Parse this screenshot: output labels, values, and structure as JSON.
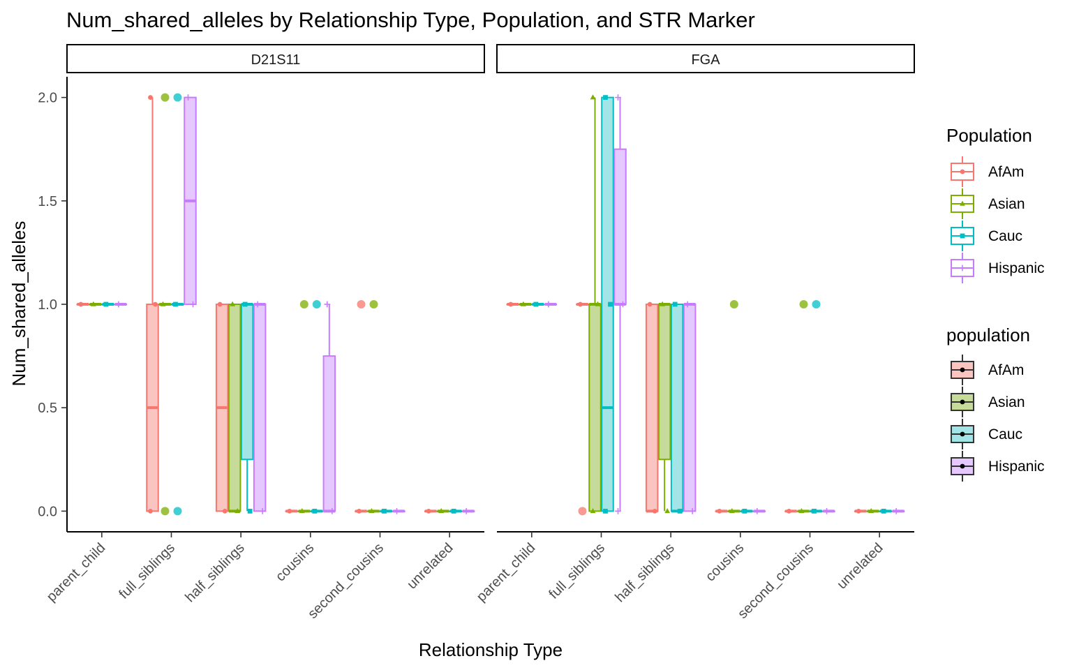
{
  "chart_data": {
    "type": "boxplot",
    "title": "Num_shared_alleles by Relationship Type, Population, and STR Marker",
    "xlabel": "Relationship Type",
    "ylabel": "Num_shared_alleles",
    "ylim": [
      -0.1,
      2.1
    ],
    "yticks": [
      "0.0",
      "0.5",
      "1.0",
      "1.5",
      "2.0"
    ],
    "ytick_values": [
      0,
      0.5,
      1.0,
      1.5,
      2.0
    ],
    "categories": [
      "parent_child",
      "full_siblings",
      "half_siblings",
      "cousins",
      "second_cousins",
      "unrelated"
    ],
    "populations": [
      "AfAm",
      "Asian",
      "Cauc",
      "Hispanic"
    ],
    "colors": {
      "AfAm": "#F8766D",
      "Asian": "#7CAE00",
      "Cauc": "#00BFC4",
      "Hispanic": "#C77CFF"
    },
    "fills": {
      "AfAm": "#FAC4C0",
      "Asian": "#C6DB99",
      "Cauc": "#A3E5E7",
      "Hispanic": "#E5C8FF"
    },
    "legend_population_title": "Population",
    "legend_fill_title": "population",
    "legend_labels": [
      "AfAm",
      "Asian",
      "Cauc",
      "Hispanic"
    ],
    "facets": [
      {
        "name": "D21S11",
        "boxes": [
          [
            {
              "q1": 1,
              "med": 1,
              "q3": 1,
              "lo": 1,
              "hi": 1,
              "pts": [
                1
              ]
            },
            {
              "q1": 1,
              "med": 1,
              "q3": 1,
              "lo": 1,
              "hi": 1,
              "pts": [
                1
              ]
            },
            {
              "q1": 1,
              "med": 1,
              "q3": 1,
              "lo": 1,
              "hi": 1,
              "pts": [
                1
              ]
            },
            {
              "q1": 1,
              "med": 1,
              "q3": 1,
              "lo": 1,
              "hi": 1,
              "pts": [
                1
              ]
            }
          ],
          [
            {
              "q1": 0,
              "med": 0.5,
              "q3": 1,
              "lo": 0,
              "hi": 2,
              "pts": [
                2,
                1,
                0
              ]
            },
            {
              "q1": 1,
              "med": 1,
              "q3": 1,
              "lo": 1,
              "hi": 1,
              "pts": [
                1
              ],
              "out": [
                2,
                0
              ]
            },
            {
              "q1": 1,
              "med": 1,
              "q3": 1,
              "lo": 1,
              "hi": 1,
              "pts": [
                1
              ],
              "out": [
                2,
                0
              ]
            },
            {
              "q1": 1,
              "med": 1.5,
              "q3": 2,
              "lo": 1,
              "hi": 2,
              "pts": [
                2,
                1
              ]
            }
          ],
          [
            {
              "q1": 0,
              "med": 0.5,
              "q3": 1,
              "lo": 0,
              "hi": 1,
              "pts": [
                1,
                0
              ]
            },
            {
              "q1": 0,
              "med": 0,
              "q3": 1,
              "lo": 0,
              "hi": 1,
              "pts": [
                1,
                0
              ]
            },
            {
              "q1": 0.25,
              "med": 1,
              "q3": 1,
              "lo": 0,
              "hi": 1,
              "pts": [
                1,
                0
              ]
            },
            {
              "q1": 0,
              "med": 1,
              "q3": 1,
              "lo": 0,
              "hi": 1,
              "pts": [
                1,
                0
              ]
            }
          ],
          [
            {
              "q1": 0,
              "med": 0,
              "q3": 0,
              "lo": 0,
              "hi": 0,
              "pts": [
                0
              ]
            },
            {
              "q1": 0,
              "med": 0,
              "q3": 0,
              "lo": 0,
              "hi": 0,
              "pts": [
                0
              ],
              "out": [
                1
              ]
            },
            {
              "q1": 0,
              "med": 0,
              "q3": 0,
              "lo": 0,
              "hi": 0,
              "pts": [
                0
              ],
              "out": [
                1
              ]
            },
            {
              "q1": 0,
              "med": 0,
              "q3": 0.75,
              "lo": 0,
              "hi": 1,
              "pts": [
                1,
                0
              ]
            }
          ],
          [
            {
              "q1": 0,
              "med": 0,
              "q3": 0,
              "lo": 0,
              "hi": 0,
              "pts": [
                0
              ],
              "out": [
                1
              ]
            },
            {
              "q1": 0,
              "med": 0,
              "q3": 0,
              "lo": 0,
              "hi": 0,
              "pts": [
                0
              ],
              "out": [
                1
              ]
            },
            {
              "q1": 0,
              "med": 0,
              "q3": 0,
              "lo": 0,
              "hi": 0,
              "pts": [
                0
              ]
            },
            {
              "q1": 0,
              "med": 0,
              "q3": 0,
              "lo": 0,
              "hi": 0,
              "pts": [
                0
              ]
            }
          ],
          [
            {
              "q1": 0,
              "med": 0,
              "q3": 0,
              "lo": 0,
              "hi": 0,
              "pts": [
                0
              ]
            },
            {
              "q1": 0,
              "med": 0,
              "q3": 0,
              "lo": 0,
              "hi": 0,
              "pts": [
                0
              ]
            },
            {
              "q1": 0,
              "med": 0,
              "q3": 0,
              "lo": 0,
              "hi": 0,
              "pts": [
                0
              ]
            },
            {
              "q1": 0,
              "med": 0,
              "q3": 0,
              "lo": 0,
              "hi": 0,
              "pts": [
                0
              ]
            }
          ]
        ]
      },
      {
        "name": "FGA",
        "boxes": [
          [
            {
              "q1": 1,
              "med": 1,
              "q3": 1,
              "lo": 1,
              "hi": 1,
              "pts": [
                1
              ]
            },
            {
              "q1": 1,
              "med": 1,
              "q3": 1,
              "lo": 1,
              "hi": 1,
              "pts": [
                1
              ]
            },
            {
              "q1": 1,
              "med": 1,
              "q3": 1,
              "lo": 1,
              "hi": 1,
              "pts": [
                1
              ]
            },
            {
              "q1": 1,
              "med": 1,
              "q3": 1,
              "lo": 1,
              "hi": 1,
              "pts": [
                1
              ]
            }
          ],
          [
            {
              "q1": 1,
              "med": 1,
              "q3": 1,
              "lo": 1,
              "hi": 1,
              "pts": [
                1
              ],
              "out": [
                0
              ]
            },
            {
              "q1": 0,
              "med": 1,
              "q3": 1,
              "lo": 0,
              "hi": 2,
              "pts": [
                2,
                1,
                0
              ]
            },
            {
              "q1": 0,
              "med": 0.5,
              "q3": 2,
              "lo": 0,
              "hi": 2,
              "pts": [
                2,
                1,
                0
              ]
            },
            {
              "q1": 1,
              "med": 1,
              "q3": 1.75,
              "lo": 0,
              "hi": 2,
              "pts": [
                2,
                1,
                0
              ]
            }
          ],
          [
            {
              "q1": 0,
              "med": 0,
              "q3": 1,
              "lo": 0,
              "hi": 1,
              "pts": [
                1,
                0
              ]
            },
            {
              "q1": 0.25,
              "med": 1,
              "q3": 1,
              "lo": 0,
              "hi": 1,
              "pts": [
                1,
                0
              ]
            },
            {
              "q1": 0,
              "med": 0,
              "q3": 1,
              "lo": 0,
              "hi": 1,
              "pts": [
                1,
                0
              ]
            },
            {
              "q1": 0,
              "med": 1,
              "q3": 1,
              "lo": 0,
              "hi": 1,
              "pts": [
                1,
                0
              ]
            }
          ],
          [
            {
              "q1": 0,
              "med": 0,
              "q3": 0,
              "lo": 0,
              "hi": 0,
              "pts": [
                0
              ]
            },
            {
              "q1": 0,
              "med": 0,
              "q3": 0,
              "lo": 0,
              "hi": 0,
              "pts": [
                0
              ],
              "out": [
                1
              ]
            },
            {
              "q1": 0,
              "med": 0,
              "q3": 0,
              "lo": 0,
              "hi": 0,
              "pts": [
                0
              ]
            },
            {
              "q1": 0,
              "med": 0,
              "q3": 0,
              "lo": 0,
              "hi": 0,
              "pts": [
                0
              ]
            }
          ],
          [
            {
              "q1": 0,
              "med": 0,
              "q3": 0,
              "lo": 0,
              "hi": 0,
              "pts": [
                0
              ]
            },
            {
              "q1": 0,
              "med": 0,
              "q3": 0,
              "lo": 0,
              "hi": 0,
              "pts": [
                0
              ],
              "out": [
                1
              ]
            },
            {
              "q1": 0,
              "med": 0,
              "q3": 0,
              "lo": 0,
              "hi": 0,
              "pts": [
                0
              ],
              "out": [
                1
              ]
            },
            {
              "q1": 0,
              "med": 0,
              "q3": 0,
              "lo": 0,
              "hi": 0,
              "pts": [
                0
              ]
            }
          ],
          [
            {
              "q1": 0,
              "med": 0,
              "q3": 0,
              "lo": 0,
              "hi": 0,
              "pts": [
                0
              ]
            },
            {
              "q1": 0,
              "med": 0,
              "q3": 0,
              "lo": 0,
              "hi": 0,
              "pts": [
                0
              ]
            },
            {
              "q1": 0,
              "med": 0,
              "q3": 0,
              "lo": 0,
              "hi": 0,
              "pts": [
                0
              ]
            },
            {
              "q1": 0,
              "med": 0,
              "q3": 0,
              "lo": 0,
              "hi": 0,
              "pts": [
                0
              ]
            }
          ]
        ]
      }
    ]
  }
}
